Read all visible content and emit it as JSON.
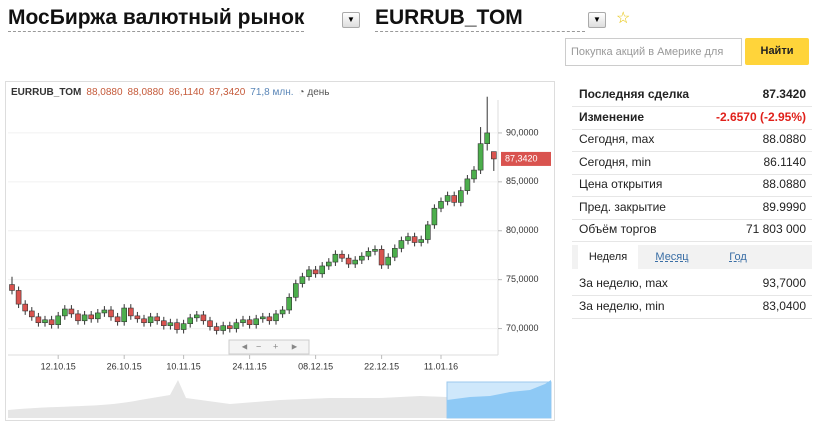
{
  "header": {
    "market": "МосБиржа валютный рынок",
    "instrument": "EURRUB_TOM"
  },
  "search": {
    "placeholder": "Покупка акций в Америке для",
    "button": "Найти"
  },
  "chart_data": {
    "type": "candlestick",
    "instrument": "EURRUB_TOM",
    "header_values": [
      "88,0880",
      "88,0880",
      "86,1140",
      "87,3420"
    ],
    "volume": "71,8 млн.",
    "period": "день",
    "last_price_label": "87,3420",
    "categories": [
      null,
      null,
      null,
      null,
      null,
      null,
      null,
      "12.10.15",
      null,
      null,
      null,
      null,
      null,
      null,
      null,
      null,
      null,
      "26.10.15",
      null,
      null,
      null,
      null,
      null,
      null,
      null,
      null,
      "10.11.15",
      null,
      null,
      null,
      null,
      null,
      null,
      null,
      null,
      null,
      "24.11.15",
      null,
      null,
      null,
      null,
      null,
      null,
      null,
      null,
      null,
      "08.12.15",
      null,
      null,
      null,
      null,
      null,
      null,
      null,
      null,
      null,
      "22.12.15",
      null,
      null,
      null,
      null,
      null,
      null,
      null,
      null,
      "11.01.16",
      null,
      null,
      null,
      null,
      null,
      null,
      null,
      null
    ],
    "open": [
      74.5,
      73.9,
      72.5,
      71.8,
      71.2,
      70.6,
      70.9,
      70.4,
      71.3,
      72.0,
      71.5,
      70.8,
      71.4,
      71.0,
      71.6,
      71.9,
      71.2,
      70.7,
      72.1,
      71.3,
      71.0,
      70.6,
      71.2,
      70.8,
      70.3,
      70.6,
      69.9,
      70.5,
      71.1,
      71.4,
      70.8,
      70.2,
      69.8,
      70.3,
      70.0,
      70.6,
      70.9,
      70.4,
      71.0,
      71.2,
      70.8,
      71.5,
      71.9,
      73.2,
      74.6,
      75.3,
      76.0,
      75.6,
      76.4,
      76.8,
      77.6,
      77.2,
      76.6,
      77.0,
      77.4,
      77.9,
      78.1,
      76.5,
      77.3,
      78.2,
      79.0,
      79.4,
      78.8,
      79.1,
      80.6,
      82.3,
      83.0,
      83.6,
      82.9,
      84.1,
      85.3,
      86.2,
      88.9,
      88.088
    ],
    "high": [
      75.3,
      74.3,
      72.9,
      72.2,
      71.6,
      71.3,
      71.3,
      71.7,
      72.4,
      72.4,
      71.9,
      71.8,
      71.8,
      72.0,
      72.3,
      72.3,
      71.6,
      72.5,
      72.5,
      71.7,
      71.4,
      71.6,
      71.6,
      71.2,
      71.0,
      71.0,
      70.9,
      71.5,
      71.8,
      71.8,
      71.2,
      70.6,
      70.7,
      70.7,
      71.0,
      71.3,
      71.3,
      71.4,
      71.6,
      71.6,
      71.9,
      72.3,
      73.6,
      75.0,
      75.7,
      76.4,
      76.4,
      76.8,
      77.2,
      78.0,
      78.0,
      77.6,
      77.4,
      77.8,
      78.3,
      78.5,
      78.5,
      77.7,
      78.6,
      79.4,
      79.8,
      79.8,
      79.5,
      81.0,
      82.7,
      83.4,
      84.0,
      84.0,
      84.5,
      85.7,
      86.6,
      90.6,
      93.7,
      88.088
    ],
    "low": [
      73.5,
      72.1,
      71.4,
      70.8,
      70.2,
      70.2,
      70.0,
      70.0,
      70.9,
      71.1,
      70.4,
      70.4,
      70.6,
      70.6,
      71.2,
      70.8,
      70.3,
      70.3,
      70.9,
      70.6,
      70.2,
      70.2,
      70.4,
      69.9,
      69.9,
      69.5,
      69.5,
      70.1,
      70.7,
      70.4,
      69.8,
      69.4,
      69.4,
      69.6,
      69.6,
      70.2,
      70.0,
      70.0,
      70.6,
      70.4,
      70.4,
      71.1,
      71.5,
      72.8,
      74.2,
      74.9,
      75.2,
      75.2,
      76.0,
      76.4,
      76.8,
      76.2,
      76.2,
      76.6,
      77.0,
      77.5,
      76.1,
      76.1,
      76.9,
      77.8,
      78.6,
      78.4,
      78.4,
      78.7,
      80.2,
      81.9,
      82.6,
      82.5,
      82.5,
      83.7,
      84.9,
      85.8,
      88.2,
      86.114
    ],
    "close": [
      73.9,
      72.5,
      71.8,
      71.2,
      70.6,
      70.9,
      70.4,
      71.3,
      72.0,
      71.5,
      70.8,
      71.4,
      71.0,
      71.6,
      71.9,
      71.2,
      70.7,
      72.1,
      71.3,
      71.0,
      70.6,
      71.2,
      70.8,
      70.3,
      70.6,
      69.9,
      70.5,
      71.1,
      71.4,
      70.8,
      70.2,
      69.8,
      70.3,
      70.0,
      70.6,
      70.9,
      70.4,
      71.0,
      71.2,
      70.8,
      71.5,
      71.9,
      73.2,
      74.6,
      75.3,
      76.0,
      75.6,
      76.4,
      76.8,
      77.6,
      77.2,
      76.6,
      77.0,
      77.4,
      77.9,
      78.1,
      76.5,
      77.3,
      78.2,
      79.0,
      79.4,
      78.8,
      79.1,
      80.6,
      82.3,
      83.0,
      83.6,
      82.9,
      84.1,
      85.3,
      86.2,
      88.9,
      89.999,
      87.342
    ],
    "up_color": "#4cae4c",
    "down_color": "#d9534f",
    "ylim": [
      67.3,
      95
    ],
    "yticks": [
      {
        "value": 70,
        "label": "70,0000"
      },
      {
        "value": 75,
        "label": "75,0000"
      },
      {
        "value": 80,
        "label": "80,0000"
      },
      {
        "value": 85,
        "label": "85,0000"
      },
      {
        "value": 90,
        "label": "90,0000"
      }
    ],
    "grid": true
  },
  "stats": [
    {
      "label": "Последняя сделка",
      "value": "87.3420"
    },
    {
      "label": "Изменение",
      "value": "-2.6570 (-2.95%)"
    },
    {
      "label": "Сегодня, max",
      "value": "88.0880"
    },
    {
      "label": "Сегодня, min",
      "value": "86.1140"
    },
    {
      "label": "Цена открытия",
      "value": "88.0880"
    },
    {
      "label": "Пред. закрытие",
      "value": "89.9990"
    },
    {
      "label": "Объём торгов",
      "value": "71 803 000"
    }
  ],
  "tabs": [
    "Неделя",
    "Месяц",
    "Год"
  ],
  "week_stats": [
    {
      "label": "За неделю, max",
      "value": "93,7000"
    },
    {
      "label": "За неделю, min",
      "value": "83,0400"
    }
  ]
}
